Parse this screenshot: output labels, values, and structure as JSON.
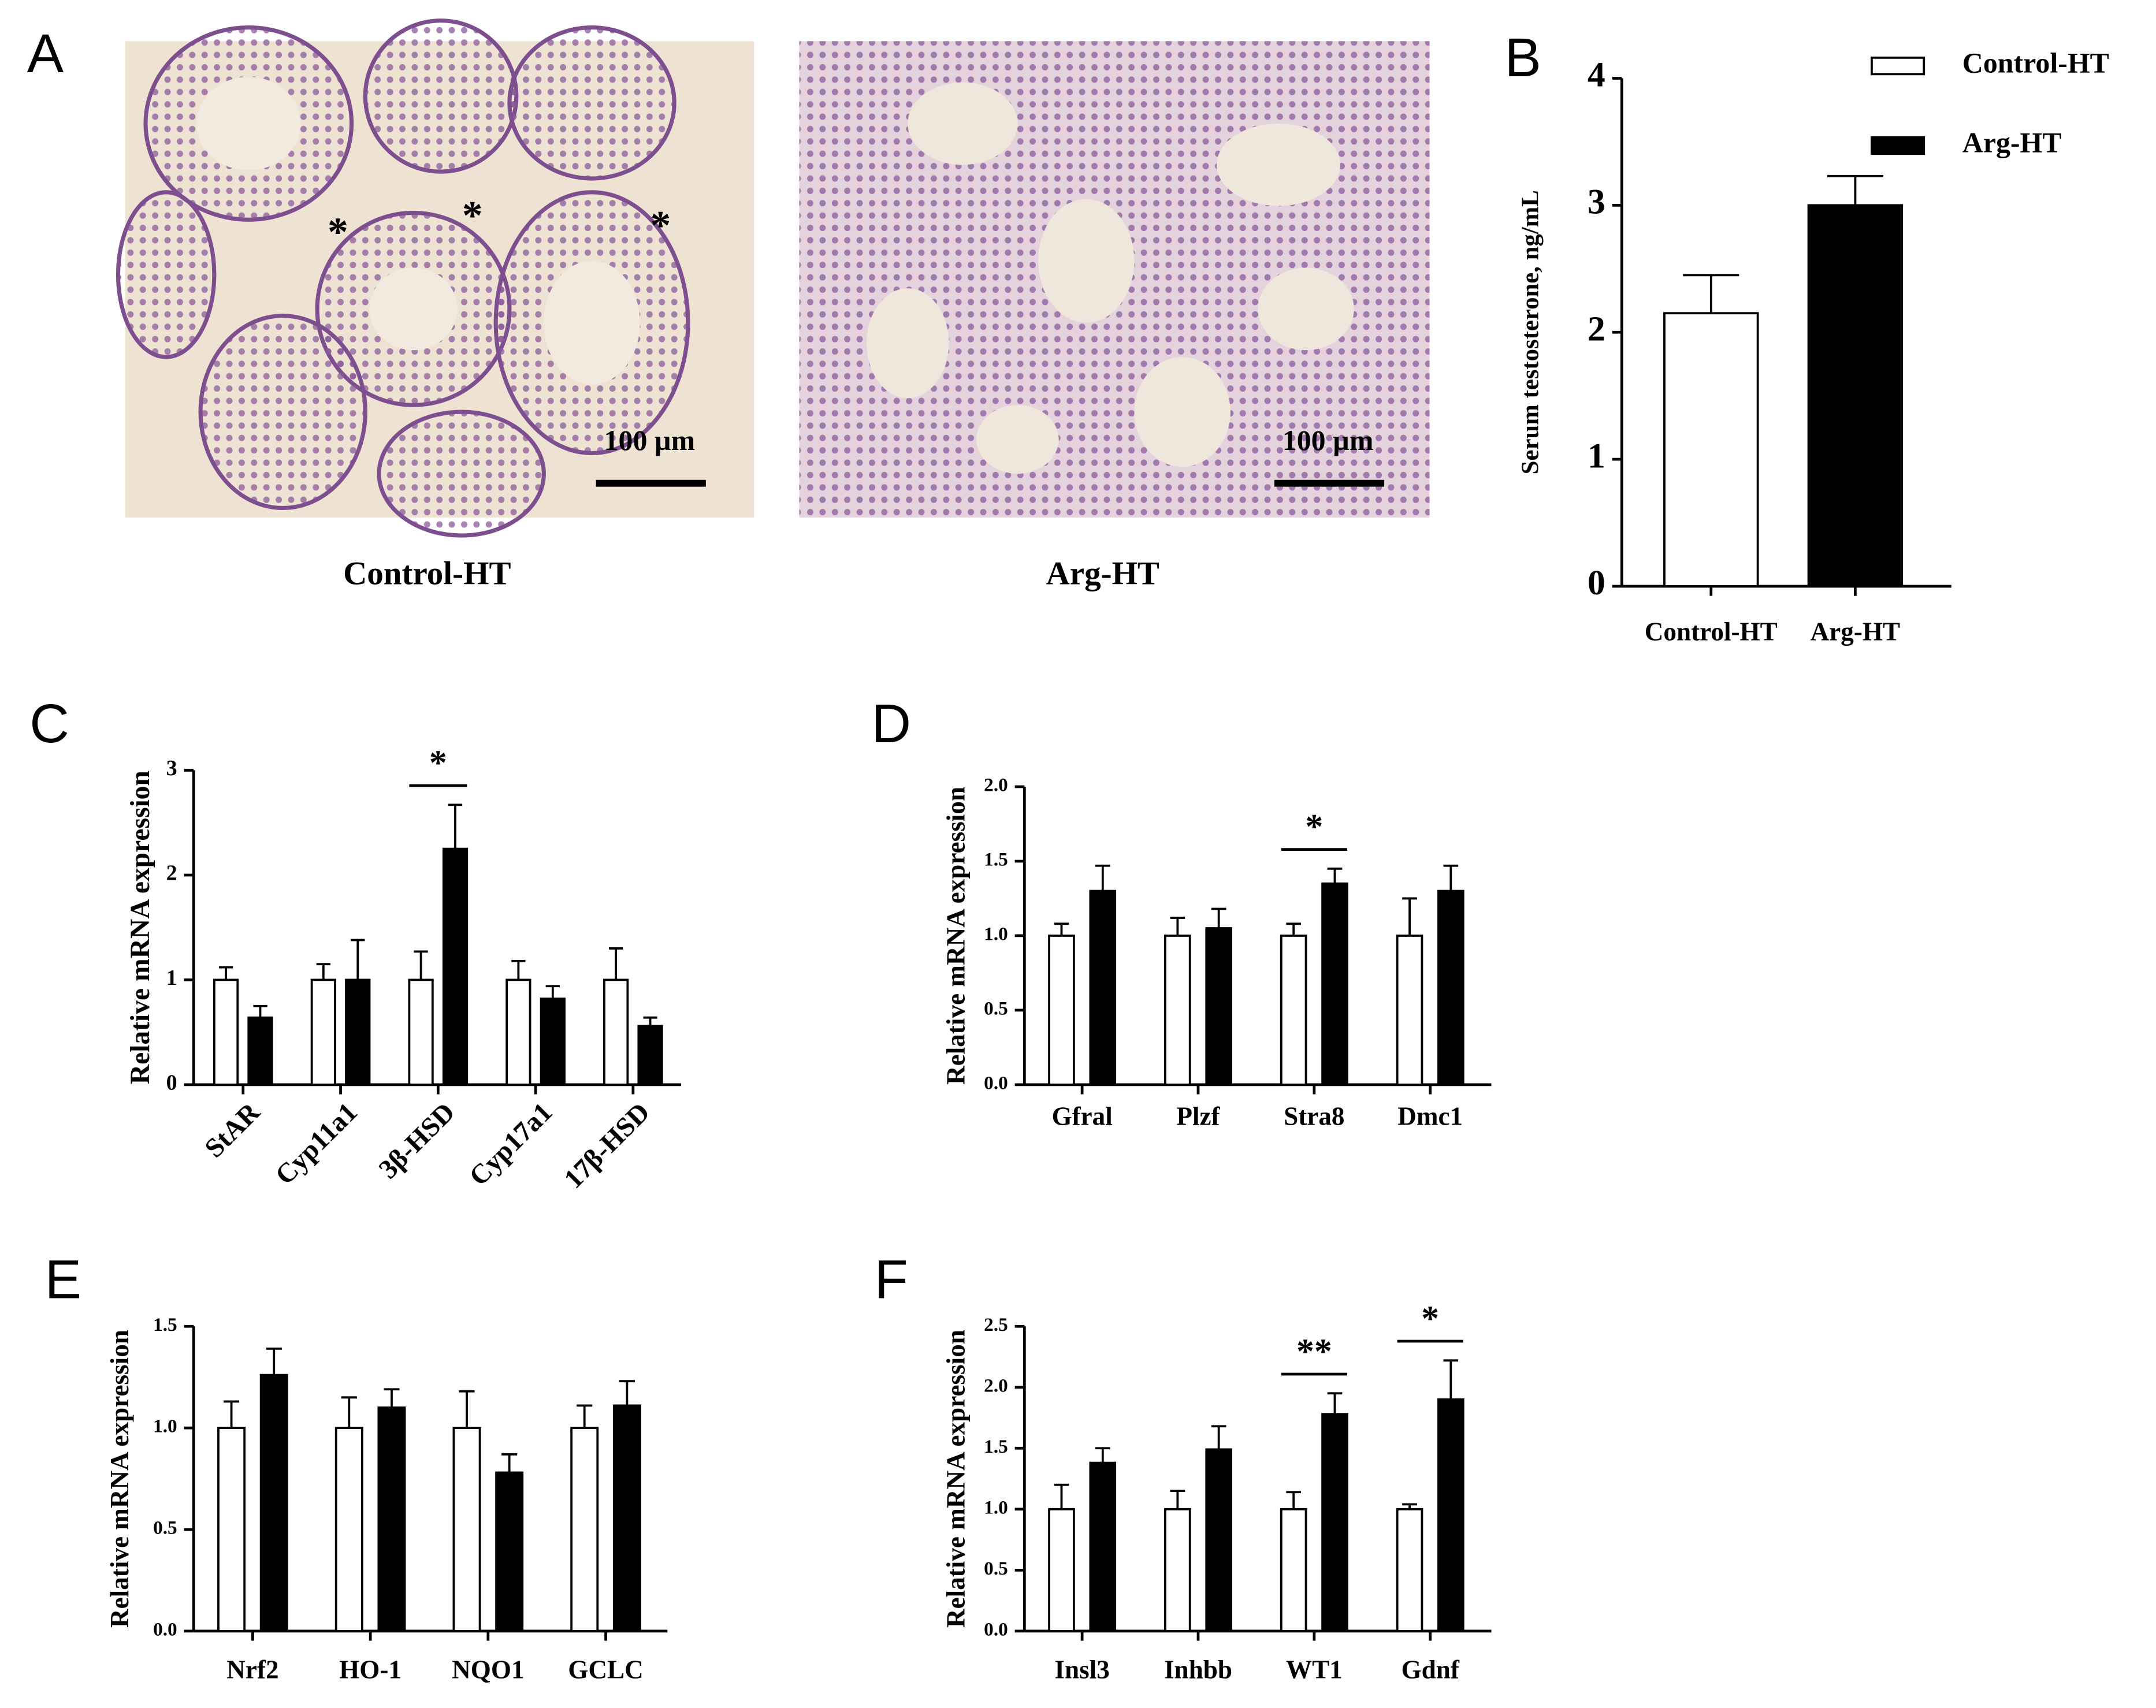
{
  "micrographs": {
    "label": "A",
    "marker": "*",
    "images": [
      {
        "caption": "Control-HT",
        "scale_bar": "100 µm"
      },
      {
        "caption": "Arg-HT",
        "scale_bar": "100 µm"
      }
    ]
  },
  "chart_data": [
    {
      "type": "bar",
      "label": "B",
      "y_label": "Serum testosterone, ng/mL",
      "categories": [
        "Control-HT",
        "Arg-HT"
      ],
      "series": [
        {
          "name": "Control-HT",
          "color": "#ffffff",
          "values": [
            2.15,
            null
          ],
          "errors": [
            0.3,
            null
          ]
        },
        {
          "name": "Arg-HT",
          "color": "#000000",
          "values": [
            null,
            3.0
          ],
          "errors": [
            null,
            0.23
          ]
        }
      ],
      "ylim": [
        0,
        4
      ],
      "yticks": [
        0,
        1,
        2,
        3,
        4
      ],
      "legend": "top-right"
    },
    {
      "type": "bar",
      "label": "C",
      "y_label": "Relative mRNA expression",
      "categories": [
        "StAR",
        "Cyp11a1",
        "3β-HSD",
        "Cyp17a1",
        "17β-HSD"
      ],
      "series": [
        {
          "name": "Control-HT",
          "color": "#ffffff",
          "values": [
            1,
            1,
            1,
            1,
            1
          ],
          "errors": [
            0.12,
            0.15,
            0.27,
            0.18,
            0.3
          ]
        },
        {
          "name": "Arg-HT",
          "color": "#000000",
          "values": [
            0.64,
            1.0,
            2.25,
            0.82,
            0.56
          ],
          "errors": [
            0.11,
            0.38,
            0.42,
            0.12,
            0.08
          ]
        }
      ],
      "ylim": [
        0,
        3
      ],
      "yticks": [
        0,
        1,
        2,
        3
      ],
      "annotations": [
        {
          "category": "3β-HSD",
          "text": "*"
        }
      ]
    },
    {
      "type": "bar",
      "label": "D",
      "y_label": "Relative mRNA expression",
      "categories": [
        "Gfral",
        "Plzf",
        "Stra8",
        "Dmc1"
      ],
      "series": [
        {
          "name": "Control-HT",
          "color": "#ffffff",
          "values": [
            1,
            1,
            1,
            1
          ],
          "errors": [
            0.08,
            0.12,
            0.08,
            0.25
          ]
        },
        {
          "name": "Arg-HT",
          "color": "#000000",
          "values": [
            1.3,
            1.05,
            1.35,
            1.3
          ],
          "errors": [
            0.17,
            0.13,
            0.1,
            0.17
          ]
        }
      ],
      "ylim": [
        0,
        2
      ],
      "yticks": [
        {
          "value": 0,
          "label": "0.0"
        },
        0.5,
        {
          "value": 1,
          "label": "1.0"
        },
        1.5,
        {
          "value": 2,
          "label": "2.0"
        }
      ],
      "annotations": [
        {
          "category": "Stra8",
          "text": "*"
        }
      ]
    },
    {
      "type": "bar",
      "label": "E",
      "y_label": "Relative mRNA expression",
      "categories": [
        "Nrf2",
        "HO-1",
        "NQO1",
        "GCLC"
      ],
      "series": [
        {
          "name": "Control-HT",
          "color": "#ffffff",
          "values": [
            1,
            1,
            1,
            1
          ],
          "errors": [
            0.13,
            0.15,
            0.18,
            0.11
          ]
        },
        {
          "name": "Arg-HT",
          "color": "#000000",
          "values": [
            1.26,
            1.1,
            0.78,
            1.11
          ],
          "errors": [
            0.13,
            0.09,
            0.09,
            0.12
          ]
        }
      ],
      "ylim": [
        0,
        1.5
      ],
      "yticks": [
        {
          "value": 0,
          "label": "0.0"
        },
        0.5,
        {
          "value": 1,
          "label": "1.0"
        },
        1.5
      ]
    },
    {
      "type": "bar",
      "label": "F",
      "y_label": "Relative mRNA expression",
      "categories": [
        "Insl3",
        "Inhbb",
        "WT1",
        "Gdnf"
      ],
      "series": [
        {
          "name": "Control-HT",
          "color": "#ffffff",
          "values": [
            1,
            1,
            1,
            1
          ],
          "errors": [
            0.2,
            0.15,
            0.14,
            0.04
          ]
        },
        {
          "name": "Arg-HT",
          "color": "#000000",
          "values": [
            1.38,
            1.49,
            1.78,
            1.9
          ],
          "errors": [
            0.12,
            0.19,
            0.17,
            0.32
          ]
        }
      ],
      "ylim": [
        0,
        2.5
      ],
      "yticks": [
        {
          "value": 0,
          "label": "0.0"
        },
        0.5,
        {
          "value": 1,
          "label": "1.0"
        },
        1.5,
        {
          "value": 2,
          "label": "2.0"
        },
        2.5
      ],
      "annotations": [
        {
          "category": "WT1",
          "text": "**"
        },
        {
          "category": "Gdnf",
          "text": "*"
        }
      ]
    }
  ]
}
